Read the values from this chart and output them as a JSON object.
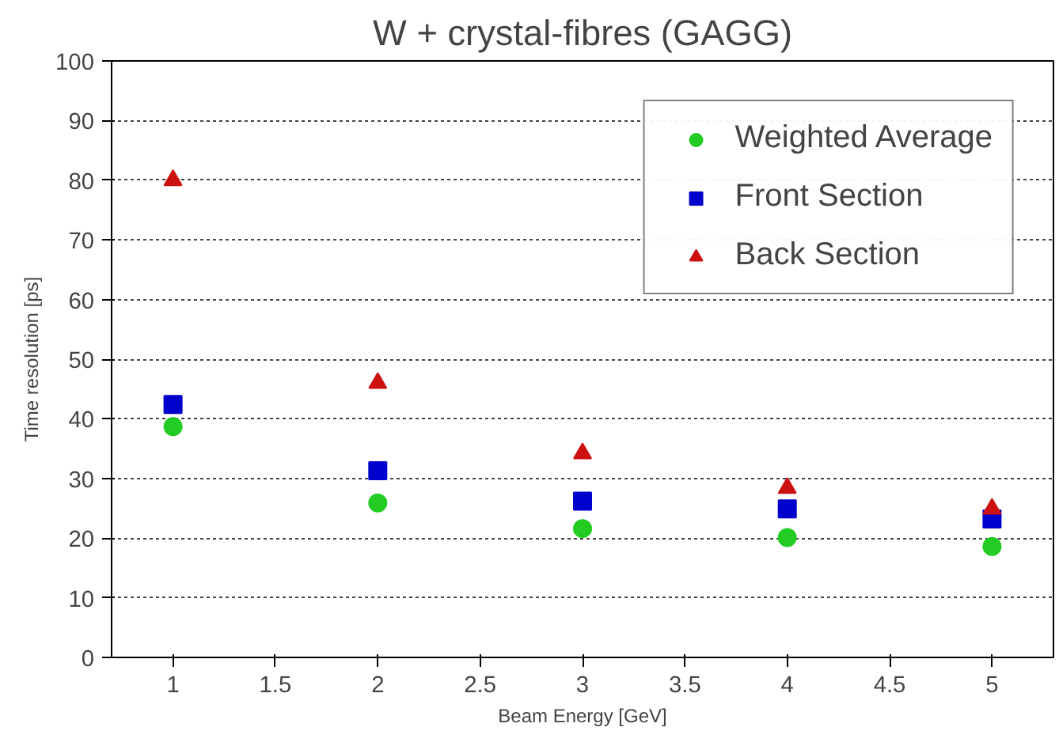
{
  "chart_data": {
    "type": "scatter",
    "title": "W + crystal-fibres (GAGG)",
    "xlabel": "Beam Energy [GeV]",
    "ylabel": "Time resolution [ps]",
    "x": [
      1,
      2,
      3,
      4,
      5
    ],
    "series": [
      {
        "name": "Weighted Average",
        "color": "#22cc22",
        "marker": "circle",
        "values": [
          38.7,
          25.9,
          21.6,
          20.1,
          18.6
        ]
      },
      {
        "name": "Front Section",
        "color": "#0000cc",
        "marker": "square",
        "values": [
          42.4,
          31.3,
          26.2,
          24.9,
          23.2
        ]
      },
      {
        "name": "Back Section",
        "color": "#cc1111",
        "marker": "triangle",
        "values": [
          80,
          46,
          34.2,
          28.4,
          24.9
        ]
      }
    ],
    "xlim": [
      0.7,
      5.3
    ],
    "ylim": [
      0,
      100
    ],
    "xticks": [
      1,
      1.5,
      2,
      2.5,
      3,
      3.5,
      4,
      4.5,
      5
    ],
    "yticks": [
      0,
      10,
      20,
      30,
      40,
      50,
      60,
      70,
      80,
      90,
      100
    ],
    "grid": "y",
    "legend": "top right"
  }
}
